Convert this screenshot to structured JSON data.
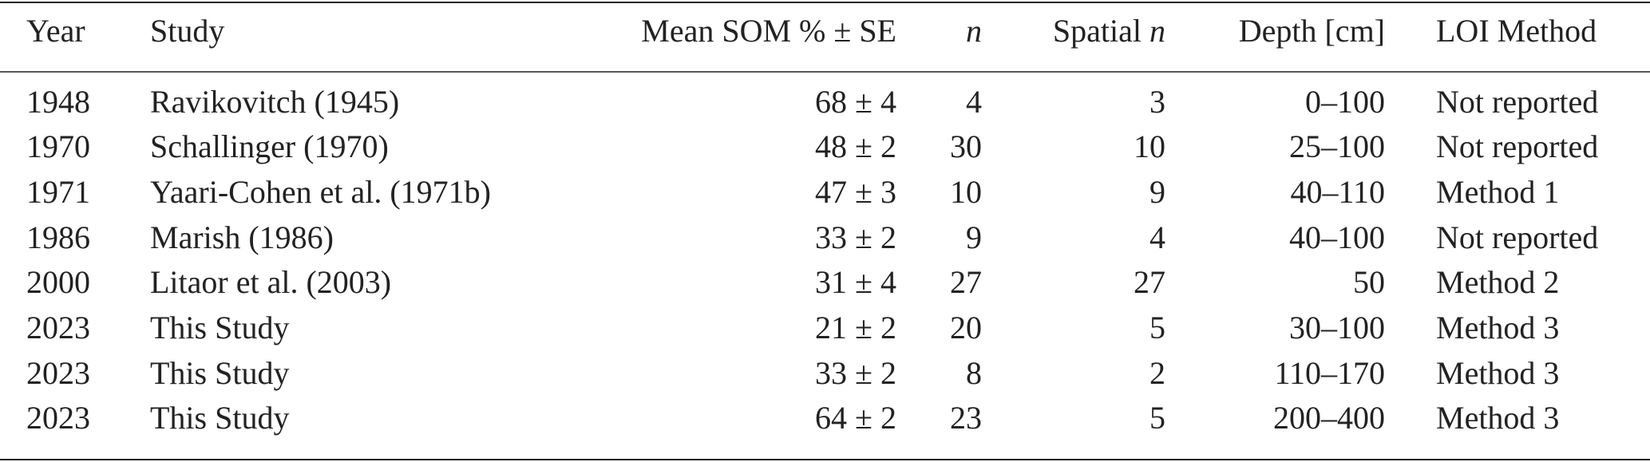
{
  "table": {
    "columns": [
      "Year",
      "Study",
      "Mean SOM % ± SE",
      "n",
      [
        "Spatial",
        "n"
      ],
      "Depth [cm]",
      "LOI Method"
    ],
    "rows": [
      [
        1948,
        "Ravikovitch (1945)",
        "68 ± 4",
        4,
        3,
        "0–100",
        "Not reported"
      ],
      [
        1970,
        "Schallinger (1970)",
        "48 ± 2",
        30,
        10,
        "25–100",
        "Not reported"
      ],
      [
        1971,
        "Yaari-Cohen et al. (1971b)",
        "47 ± 3",
        10,
        9,
        "40–110",
        "Method 1"
      ],
      [
        1986,
        "Marish (1986)",
        "33 ± 2",
        9,
        4,
        "40–100",
        "Not reported"
      ],
      [
        2000,
        "Litaor et al. (2003)",
        "31 ± 4",
        27,
        27,
        "50",
        "Method 2"
      ],
      [
        2023,
        "This Study",
        "21 ± 2",
        20,
        5,
        "30–100",
        "Method 3"
      ],
      [
        2023,
        "This Study",
        "33 ± 2",
        8,
        2,
        "110–170",
        "Method 3"
      ],
      [
        2023,
        "This Study",
        "64 ± 2",
        23,
        5,
        "200–400",
        "Method 3"
      ]
    ]
  }
}
